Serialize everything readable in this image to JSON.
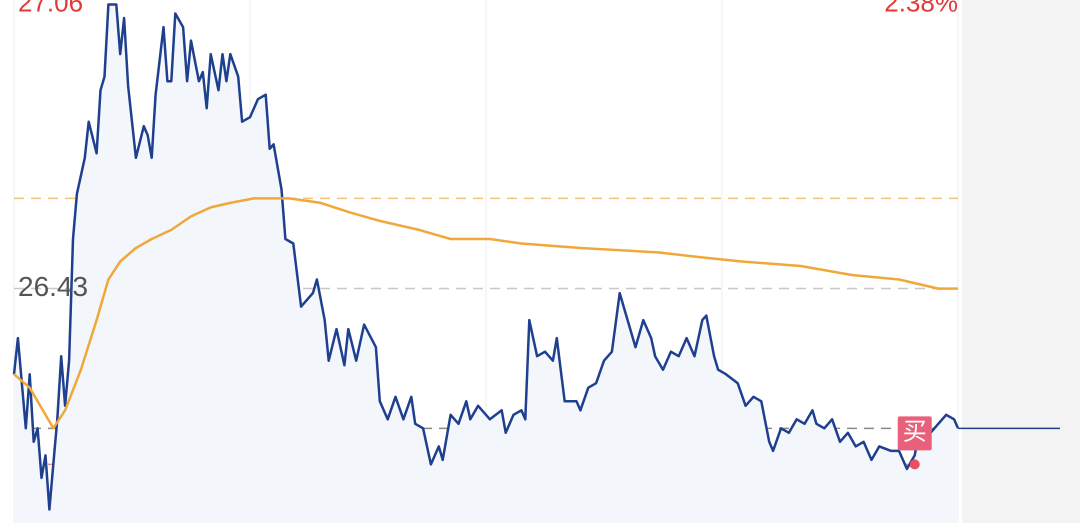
{
  "chart_data": {
    "type": "line",
    "xlim": [
      0,
      240
    ],
    "xgrid": [
      0,
      60,
      120,
      180,
      240
    ],
    "ylim": [
      25.91,
      27.07
    ],
    "yticks": [
      27.06,
      26.43
    ],
    "y2lim": [
      -1.97,
      2.42
    ],
    "y2ticks": [
      {
        "value": 2.38,
        "label": "2.38%"
      }
    ],
    "reference_lines": [
      {
        "value": 26.63,
        "color": "#f2c27a"
      },
      {
        "value": 26.12,
        "color": "#8a8a8a"
      },
      {
        "value": 26.04,
        "color": "#f08a8a"
      }
    ],
    "series": [
      {
        "color": "#1f3f8f",
        "fill": "#f3f6fa",
        "x": [
          0,
          1,
          3,
          4,
          5,
          6,
          7,
          8,
          9,
          10,
          11,
          12,
          13,
          14,
          15,
          16,
          18,
          19,
          21,
          22,
          23,
          24,
          26,
          27,
          28,
          29,
          31,
          33,
          34,
          35,
          36,
          38,
          39,
          40,
          41,
          43,
          44,
          45,
          47,
          48,
          49,
          50,
          52,
          53,
          54,
          55,
          57,
          58,
          60,
          62,
          64,
          65,
          66,
          68,
          69,
          71,
          73,
          76,
          77,
          79,
          80,
          82,
          84,
          85,
          87,
          89,
          92,
          93,
          95,
          97,
          99,
          101,
          102,
          104,
          106,
          108,
          109,
          111,
          113,
          115,
          116,
          118,
          121,
          124,
          125,
          127,
          129,
          130,
          131,
          133,
          135,
          137,
          138,
          139,
          140,
          143,
          144,
          146,
          148,
          150,
          152,
          154,
          156,
          158,
          160,
          162,
          163,
          165,
          167,
          169,
          171,
          173,
          175,
          176,
          178,
          179,
          181,
          184,
          186,
          188,
          190,
          192,
          193,
          195,
          197,
          199,
          201,
          203,
          204,
          206,
          208,
          210,
          212,
          214,
          216,
          218,
          220,
          223,
          225,
          227,
          229,
          230,
          233,
          235,
          237,
          239,
          240
        ],
        "values": [
          26.24,
          26.32,
          26.12,
          26.24,
          26.09,
          26.12,
          26.01,
          26.06,
          25.94,
          26.04,
          26.14,
          26.28,
          26.17,
          26.27,
          26.54,
          26.64,
          26.72,
          26.8,
          26.73,
          26.87,
          26.9,
          27.06,
          27.06,
          26.95,
          27.03,
          26.88,
          26.72,
          26.79,
          26.77,
          26.72,
          26.86,
          27.01,
          26.89,
          26.89,
          27.04,
          27.01,
          26.89,
          26.98,
          26.89,
          26.91,
          26.83,
          26.95,
          26.87,
          26.95,
          26.89,
          26.95,
          26.9,
          26.8,
          26.81,
          26.85,
          26.86,
          26.74,
          26.75,
          26.65,
          26.54,
          26.53,
          26.39,
          26.42,
          26.45,
          26.36,
          26.27,
          26.34,
          26.26,
          26.34,
          26.27,
          26.35,
          26.3,
          26.18,
          26.14,
          26.19,
          26.14,
          26.19,
          26.13,
          26.12,
          26.04,
          26.08,
          26.05,
          26.15,
          26.13,
          26.18,
          26.14,
          26.17,
          26.14,
          26.16,
          26.11,
          26.15,
          26.16,
          26.14,
          26.36,
          26.28,
          26.29,
          26.27,
          26.32,
          26.25,
          26.18,
          26.18,
          26.16,
          26.21,
          26.22,
          26.27,
          26.29,
          26.42,
          26.36,
          26.3,
          26.36,
          26.32,
          26.28,
          26.25,
          26.29,
          26.28,
          26.32,
          26.28,
          26.36,
          26.37,
          26.28,
          26.25,
          26.24,
          26.22,
          26.17,
          26.19,
          26.18,
          26.09,
          26.07,
          26.12,
          26.11,
          26.14,
          26.13,
          26.16,
          26.13,
          26.12,
          26.14,
          26.09,
          26.11,
          26.08,
          26.09,
          26.05,
          26.08,
          26.07,
          26.07,
          26.03,
          26.06,
          26.11,
          26.11,
          26.13,
          26.15,
          26.14,
          26.12
        ]
      },
      {
        "color": "#f0a83a",
        "x": [
          0,
          4,
          8,
          10,
          13,
          17,
          21,
          24,
          27,
          31,
          35,
          40,
          45,
          50,
          55,
          61,
          70,
          78,
          85,
          93,
          103,
          111,
          121,
          129,
          144,
          164,
          174,
          185,
          200,
          213,
          225,
          235,
          240
        ],
        "values": [
          26.24,
          26.21,
          26.15,
          26.12,
          26.16,
          26.25,
          26.36,
          26.45,
          26.49,
          26.52,
          26.54,
          26.56,
          26.59,
          26.61,
          26.62,
          26.63,
          26.63,
          26.62,
          26.6,
          26.58,
          26.56,
          26.54,
          26.54,
          26.53,
          26.52,
          26.51,
          26.5,
          26.49,
          26.48,
          26.46,
          26.45,
          26.43,
          26.43
        ]
      }
    ],
    "annotations": [
      {
        "text": "买",
        "x": 229,
        "y": 26.04
      }
    ]
  }
}
